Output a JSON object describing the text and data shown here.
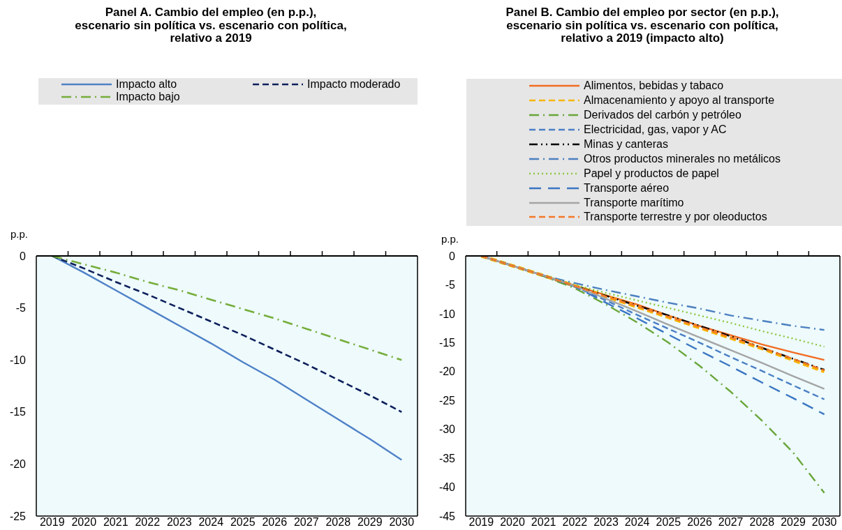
{
  "chart_data": [
    {
      "type": "line",
      "title": "Panel A. Cambio del empleo (en p.p.),\nescenario sin política vs. escenario con política,\nrelativo a 2019",
      "ylabel": "p.p.",
      "categories": [
        "2019",
        "2020",
        "2021",
        "2022",
        "2023",
        "2024",
        "2025",
        "2026",
        "2027",
        "2028",
        "2029",
        "2030"
      ],
      "series": [
        {
          "name": "Impacto alto",
          "color": "#4f81c7",
          "line_style": "solid",
          "values": [
            0,
            -1.6,
            -3.3,
            -5.0,
            -6.7,
            -8.4,
            -10.2,
            -11.9,
            -13.8,
            -15.7,
            -17.6,
            -19.6
          ]
        },
        {
          "name": "Impacto moderado",
          "color": "#0d1f5c",
          "line_style": "dashed",
          "values": [
            0,
            -1.2,
            -2.5,
            -3.7,
            -5.0,
            -6.3,
            -7.6,
            -9.0,
            -10.4,
            -11.9,
            -13.4,
            -15.0
          ]
        },
        {
          "name": "Impacto bajo",
          "color": "#76ad3b",
          "line_style": "dashdot",
          "values": [
            0,
            -0.8,
            -1.6,
            -2.5,
            -3.3,
            -4.2,
            -5.1,
            -6.0,
            -7.0,
            -8.0,
            -9.0,
            -10.0
          ]
        }
      ],
      "ylim": [
        -25,
        0
      ],
      "yticks": [
        0,
        -5,
        -10,
        -15,
        -20,
        -25
      ],
      "legend": "top"
    },
    {
      "type": "line",
      "title": "Panel B. Cambio del empleo por sector (en p.p.),\nescenario sin política vs. escenario con política,\nrelativo a 2019 (impacto alto)",
      "ylabel": "p.p.",
      "categories": [
        "2019",
        "2020",
        "2021",
        "2022",
        "2023",
        "2024",
        "2025",
        "2026",
        "2027",
        "2028",
        "2029",
        "2030"
      ],
      "series": [
        {
          "name": "Alimentos, bebidas y tabaco",
          "color": "#f26c23",
          "line_style": "solid",
          "values": [
            0,
            -1.7,
            -3.4,
            -5.1,
            -6.8,
            -8.4,
            -10.3,
            -12.1,
            -13.7,
            -15.3,
            -16.7,
            -18.0
          ]
        },
        {
          "name": "Almacenamiento y apoyo al transporte",
          "color": "#f7b500",
          "line_style": "dashed",
          "values": [
            0,
            -1.7,
            -3.4,
            -5.2,
            -7.0,
            -8.8,
            -10.6,
            -12.4,
            -14.2,
            -16.0,
            -18.0,
            -20.0
          ]
        },
        {
          "name": "Derivados del carbón y petróleo",
          "color": "#6aa63a",
          "line_style": "dashdot",
          "values": [
            0,
            -1.7,
            -3.5,
            -5.6,
            -8.4,
            -11.5,
            -15.0,
            -19.0,
            -23.5,
            -28.5,
            -34.0,
            -41.0
          ]
        },
        {
          "name": "Electricidad, gas, vapor y AC",
          "color": "#4a7fc5",
          "line_style": "dashed",
          "values": [
            0,
            -1.7,
            -3.4,
            -5.3,
            -7.7,
            -10.2,
            -12.6,
            -15.0,
            -17.5,
            -19.9,
            -22.4,
            -24.8
          ]
        },
        {
          "name": "Minas y canteras",
          "color": "#000000",
          "line_style": "dashdotdot",
          "values": [
            0,
            -1.7,
            -3.4,
            -5.2,
            -6.9,
            -8.6,
            -10.3,
            -12.1,
            -13.9,
            -15.9,
            -17.8,
            -19.7
          ]
        },
        {
          "name": "Otros productos minerales no metálicos",
          "color": "#4d80c0",
          "line_style": "dashdot",
          "values": [
            0,
            -1.7,
            -3.4,
            -4.7,
            -5.9,
            -7.0,
            -8.1,
            -9.1,
            -10.3,
            -11.2,
            -12.1,
            -12.8
          ]
        },
        {
          "name": "Papel y productos de papel",
          "color": "#8cc63e",
          "line_style": "dotted",
          "values": [
            0,
            -1.7,
            -3.4,
            -5.0,
            -6.4,
            -7.7,
            -9.0,
            -10.3,
            -11.6,
            -13.0,
            -14.3,
            -15.7
          ]
        },
        {
          "name": "Transporte aéreo",
          "color": "#3b76c2",
          "line_style": "longdash",
          "values": [
            0,
            -1.7,
            -3.4,
            -5.3,
            -8.1,
            -10.8,
            -13.6,
            -16.4,
            -19.1,
            -21.9,
            -24.6,
            -27.4
          ]
        },
        {
          "name": "Transporte marítimo",
          "color": "#a5a5a5",
          "line_style": "solid",
          "values": [
            0,
            -1.7,
            -3.4,
            -5.2,
            -7.4,
            -9.6,
            -11.9,
            -14.1,
            -16.3,
            -18.5,
            -20.8,
            -23.0
          ]
        },
        {
          "name": "Transporte terrestre y por oleoductos",
          "color": "#f4772a",
          "line_style": "dashed",
          "values": [
            0,
            -1.7,
            -3.4,
            -5.2,
            -7.0,
            -8.7,
            -10.5,
            -12.3,
            -14.1,
            -15.9,
            -17.8,
            -19.8
          ]
        }
      ],
      "ylim": [
        -45,
        0
      ],
      "yticks": [
        0,
        -5,
        -10,
        -15,
        -20,
        -25,
        -30,
        -35,
        -40,
        -45
      ],
      "legend": "top"
    }
  ]
}
